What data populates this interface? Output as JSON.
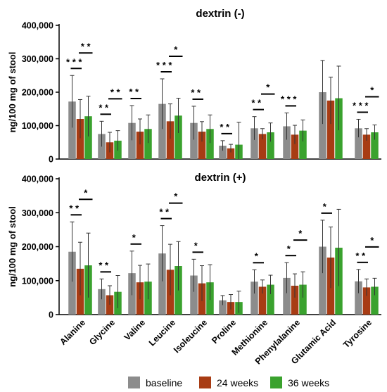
{
  "colors": {
    "baseline": "#8c8c8c",
    "24 weeks": "#a83c14",
    "36 weeks": "#3aa22e"
  },
  "legend": [
    "baseline",
    "24 weeks",
    "36 weeks"
  ],
  "chart_data": [
    {
      "type": "bar",
      "title": "dextrin (-)",
      "ylabel": "ng/100 mg of stool",
      "ylim": [
        0,
        400000
      ],
      "yticks": [
        "0",
        "100,000",
        "200,000",
        "300,000",
        "400,000"
      ],
      "categories": [
        "Alanine",
        "Glycine",
        "Valine",
        "Leucine",
        "Isoleucine",
        "Proline",
        "Methionine",
        "Phenylalanine",
        "Glutamic Acid",
        "Tyrosine"
      ],
      "series": [
        {
          "name": "baseline",
          "values": [
            172000,
            75000,
            108000,
            165000,
            108000,
            40000,
            92000,
            98000,
            200000,
            92000
          ],
          "err": [
            78000,
            38000,
            52000,
            75000,
            50000,
            15000,
            35000,
            40000,
            95000,
            27000
          ]
        },
        {
          "name": "24 weeks",
          "values": [
            120000,
            50000,
            82000,
            113000,
            82000,
            32000,
            75000,
            73000,
            175000,
            73000
          ],
          "err": [
            58000,
            30000,
            38000,
            52000,
            30000,
            12000,
            16000,
            28000,
            70000,
            18000
          ]
        },
        {
          "name": "36 weeks",
          "values": [
            128000,
            55000,
            90000,
            130000,
            90000,
            43000,
            80000,
            85000,
            182000,
            80000
          ],
          "err": [
            60000,
            30000,
            42000,
            52000,
            42000,
            67000,
            28000,
            32000,
            96000,
            22000
          ]
        }
      ],
      "significance": [
        {
          "category": "Alanine",
          "upper": "* *",
          "lower": "* * *"
        },
        {
          "category": "Glycine",
          "upper": "* *",
          "lower": "* *"
        },
        {
          "category": "Valine",
          "upper": "",
          "lower": "* *"
        },
        {
          "category": "Leucine",
          "upper": "*",
          "lower": "* * *"
        },
        {
          "category": "Isoleucine",
          "upper": "",
          "lower": "* *"
        },
        {
          "category": "Proline",
          "upper": "",
          "lower": "* *"
        },
        {
          "category": "Methionine",
          "upper": "*",
          "lower": "* *"
        },
        {
          "category": "Phenylalanine",
          "upper": "",
          "lower": "* * *"
        },
        {
          "category": "Glutamic Acid",
          "upper": "",
          "lower": ""
        },
        {
          "category": "Tyrosine",
          "upper": "*",
          "lower": "* * *"
        }
      ]
    },
    {
      "type": "bar",
      "title": "dextrin (+)",
      "ylabel": "ng/100 mg of stool",
      "ylim": [
        0,
        400000
      ],
      "yticks": [
        "0",
        "100,000",
        "200,000",
        "300,000",
        "400,000"
      ],
      "categories": [
        "Alanine",
        "Glycine",
        "Valine",
        "Leucine",
        "Isoleucine",
        "Proline",
        "Methionine",
        "Phenylalanine",
        "Glutamic Acid",
        "Tyrosine"
      ],
      "series": [
        {
          "name": "baseline",
          "values": [
            185000,
            75000,
            122000,
            180000,
            115000,
            42000,
            97000,
            108000,
            200000,
            98000
          ],
          "err": [
            88000,
            30000,
            65000,
            82000,
            48000,
            14000,
            35000,
            45000,
            78000,
            35000
          ]
        },
        {
          "name": "24 weeks",
          "values": [
            135000,
            57000,
            95000,
            132000,
            92000,
            37000,
            82000,
            85000,
            168000,
            80000
          ],
          "err": [
            78000,
            28000,
            50000,
            75000,
            52000,
            22000,
            20000,
            35000,
            90000,
            25000
          ]
        },
        {
          "name": "36 weeks",
          "values": [
            145000,
            67000,
            97000,
            143000,
            95000,
            37000,
            88000,
            88000,
            197000,
            82000
          ],
          "err": [
            95000,
            48000,
            52000,
            72000,
            52000,
            32000,
            28000,
            38000,
            113000,
            25000
          ]
        }
      ],
      "significance": [
        {
          "category": "Alanine",
          "upper": "*",
          "lower": "* *"
        },
        {
          "category": "Glycine",
          "upper": "",
          "lower": "* *"
        },
        {
          "category": "Valine",
          "upper": "",
          "lower": "*"
        },
        {
          "category": "Leucine",
          "upper": "*",
          "lower": "* *"
        },
        {
          "category": "Isoleucine",
          "upper": "",
          "lower": "*"
        },
        {
          "category": "Proline",
          "upper": "",
          "lower": ""
        },
        {
          "category": "Methionine",
          "upper": "",
          "lower": "*"
        },
        {
          "category": "Phenylalanine",
          "upper": "*",
          "lower": "*"
        },
        {
          "category": "Glutamic Acid",
          "upper": "",
          "lower": "*"
        },
        {
          "category": "Tyrosine",
          "upper": "*",
          "lower": "* *"
        }
      ]
    }
  ]
}
